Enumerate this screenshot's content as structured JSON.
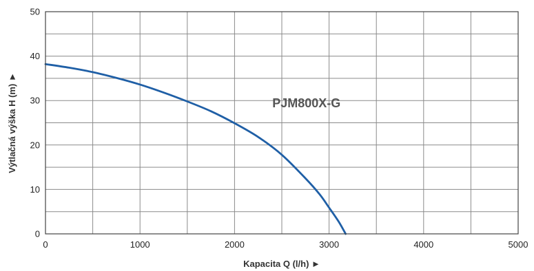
{
  "chart_data": {
    "type": "line",
    "title": "",
    "xlabel": "Kapacita Q (l/h) ►",
    "ylabel": "Výtlačná výška H (m) ►",
    "xlim": [
      0,
      5000
    ],
    "ylim": [
      0,
      50
    ],
    "x_ticks": [
      "0",
      "1000",
      "2000",
      "3000",
      "4000",
      "5000"
    ],
    "x_tick_values": [
      0,
      1000,
      2000,
      3000,
      4000,
      5000
    ],
    "y_ticks": [
      "0",
      "10",
      "20",
      "30",
      "40",
      "50"
    ],
    "y_tick_values": [
      0,
      10,
      20,
      30,
      40,
      50
    ],
    "grid": true,
    "grid_minor_x_step": 500,
    "grid_minor_y_step": 5,
    "series": [
      {
        "name": "PJM800X-G",
        "color": "#1f5fa6",
        "x": [
          0,
          250,
          500,
          750,
          1000,
          1250,
          1500,
          1750,
          2000,
          2250,
          2500,
          2750,
          2900,
          3000,
          3100,
          3175
        ],
        "values": [
          38.2,
          37.4,
          36.4,
          35.1,
          33.6,
          31.8,
          29.8,
          27.6,
          24.9,
          21.8,
          17.8,
          12.5,
          8.9,
          5.9,
          2.8,
          0
        ]
      }
    ],
    "annotations": [
      {
        "text": "PJM800X-G",
        "x": 2400,
        "y": 28.5
      }
    ],
    "colors": {
      "grid": "#8a8a8a",
      "axis": "#444444",
      "text": "#222222"
    }
  }
}
